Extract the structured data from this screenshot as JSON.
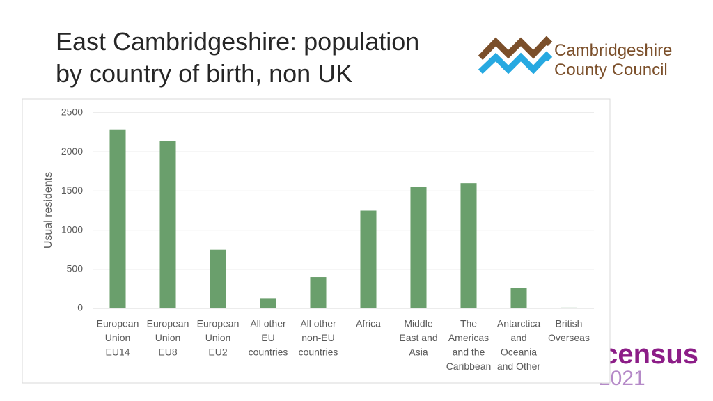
{
  "header": {
    "title_lines": [
      "East Cambridgeshire: population",
      "by country of birth, non UK"
    ]
  },
  "logos": {
    "council": [
      "Cambridgeshire",
      "County Council"
    ],
    "census": "census",
    "census_year": "2021"
  },
  "chart_data": {
    "type": "bar",
    "y_label": "Usual residents",
    "categories": [
      [
        "European",
        "Union",
        "EU14"
      ],
      [
        "European",
        "Union",
        "EU8"
      ],
      [
        "European",
        "Union",
        "EU2"
      ],
      [
        "All other",
        "EU",
        "countries"
      ],
      [
        "All other",
        "non-EU",
        "countries"
      ],
      [
        "Africa"
      ],
      [
        "Middle",
        "East and",
        "Asia"
      ],
      [
        "The",
        "Americas",
        "and the",
        "Caribbean"
      ],
      [
        "Antarctica",
        "and",
        "Oceania",
        "and Other"
      ],
      [
        "British",
        "Overseas"
      ]
    ],
    "values": [
      2280,
      2140,
      750,
      130,
      400,
      1250,
      1550,
      1600,
      265,
      10
    ],
    "color": "#6a9f6c",
    "ylim": [
      0,
      2500
    ],
    "yticks": [
      0,
      500,
      1000,
      1500,
      2000,
      2500
    ],
    "grid": true
  }
}
